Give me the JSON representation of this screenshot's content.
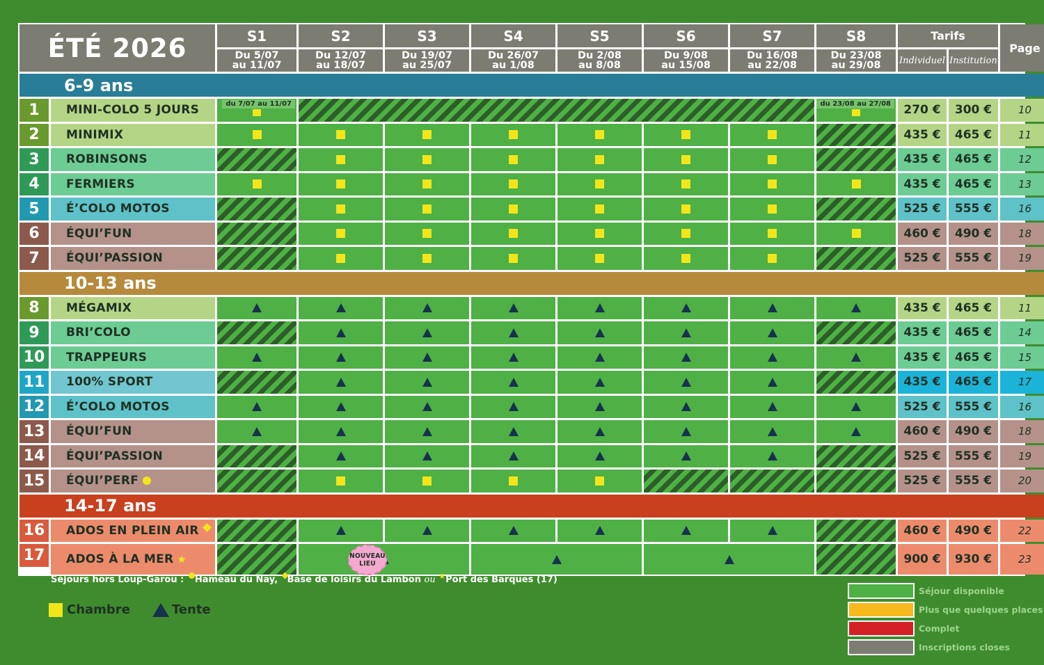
{
  "header": {
    "title": "ÉTÉ 2026",
    "weeks": [
      {
        "label": "S1",
        "dates": [
          "Du 5/07",
          "au 11/07"
        ]
      },
      {
        "label": "S2",
        "dates": [
          "Du 12/07",
          "au 18/07"
        ]
      },
      {
        "label": "S3",
        "dates": [
          "Du 19/07",
          "au 25/07"
        ]
      },
      {
        "label": "S4",
        "dates": [
          "Du 26/07",
          "au 1/08"
        ]
      },
      {
        "label": "S5",
        "dates": [
          "Du 2/08",
          "au 8/08"
        ]
      },
      {
        "label": "S6",
        "dates": [
          "Du 9/08",
          "au 15/08"
        ]
      },
      {
        "label": "S7",
        "dates": [
          "Du 16/08",
          "au 22/08"
        ]
      },
      {
        "label": "S8",
        "dates": [
          "Du 23/08",
          "au 29/08"
        ]
      }
    ],
    "tarifs_label": "Tarifs",
    "tarif_individuel": "Individuel",
    "tarif_institution": "Institution",
    "page_label": "Page"
  },
  "sections": [
    {
      "label": "6-9 ans",
      "color": "#2a7d96",
      "rows": [
        {
          "num": "1",
          "name": "MINI-COLO 5 JOURS",
          "num_color": "#6a9a2e",
          "bg": "#b5d586",
          "cells": [
            "room",
            "closed",
            "closed",
            "closed",
            "closed",
            "closed",
            "closed",
            "room"
          ],
          "notes": {
            "s1": "du 7/07 au 11/07",
            "s8": "du 23/08 au 27/08"
          },
          "merge_closed_s2_s7": true,
          "individuel": "270 €",
          "institution": "300 €",
          "page": "10"
        },
        {
          "num": "2",
          "name": "MINIMIX",
          "num_color": "#6a9a2e",
          "bg": "#b5d586",
          "cells": [
            "room",
            "room",
            "room",
            "room",
            "room",
            "room",
            "room",
            "closed"
          ],
          "individuel": "435 €",
          "institution": "465 €",
          "page": "11"
        },
        {
          "num": "3",
          "name": "ROBINSONS",
          "num_color": "#2f9a58",
          "bg": "#6ccc93",
          "cells": [
            "closed",
            "room",
            "room",
            "room",
            "room",
            "room",
            "room",
            "closed"
          ],
          "individuel": "435 €",
          "institution": "465 €",
          "page": "12"
        },
        {
          "num": "4",
          "name": "FERMIERS",
          "num_color": "#2f9a58",
          "bg": "#6ccc93",
          "cells": [
            "room",
            "room",
            "room",
            "room",
            "room",
            "room",
            "room",
            "room"
          ],
          "individuel": "435 €",
          "institution": "465 €",
          "page": "13"
        },
        {
          "num": "5",
          "name": "É’COLO MOTOS",
          "num_color": "#2199b0",
          "bg": "#5ec2c8",
          "cells": [
            "closed",
            "room",
            "room",
            "room",
            "room",
            "room",
            "room",
            "closed"
          ],
          "individuel": "525 €",
          "institution": "555 €",
          "page": "16"
        },
        {
          "num": "6",
          "name": "ÉQUI’FUN",
          "num_color": "#8c5a4c",
          "bg": "#b49289",
          "cells": [
            "closed",
            "room",
            "room",
            "room",
            "room",
            "room",
            "room",
            "room"
          ],
          "individuel": "460 €",
          "institution": "490 €",
          "page": "18"
        },
        {
          "num": "7",
          "name": "ÉQUI’PASSION",
          "num_color": "#8c5a4c",
          "bg": "#b49289",
          "cells": [
            "closed",
            "room",
            "room",
            "room",
            "room",
            "room",
            "room",
            "closed"
          ],
          "individuel": "525 €",
          "institution": "555 €",
          "page": "19"
        }
      ]
    },
    {
      "label": "10-13 ans",
      "color": "#b68a3c",
      "rows": [
        {
          "num": "8",
          "name": "MÉGAMIX",
          "num_color": "#6a9a2e",
          "bg": "#b5d586",
          "cells": [
            "tent",
            "tent",
            "tent",
            "tent",
            "tent",
            "tent",
            "tent",
            "tent"
          ],
          "individuel": "435 €",
          "institution": "465 €",
          "page": "11"
        },
        {
          "num": "9",
          "name": "BRI’COLO",
          "num_color": "#2f9a58",
          "bg": "#6ccc93",
          "cells": [
            "closed",
            "tent",
            "tent",
            "tent",
            "tent",
            "tent",
            "tent",
            "closed"
          ],
          "individuel": "435 €",
          "institution": "465 €",
          "page": "14"
        },
        {
          "num": "10",
          "name": "TRAPPEURS",
          "num_color": "#2f9a58",
          "bg": "#6ccc93",
          "cells": [
            "tent",
            "tent",
            "tent",
            "tent",
            "tent",
            "tent",
            "tent",
            "tent"
          ],
          "individuel": "435 €",
          "institution": "465 €",
          "page": "15"
        },
        {
          "num": "11",
          "name": "100% SPORT",
          "num_color": "#1fa6c7",
          "bg": "#72c6cf",
          "price_bg": "#1cb3d9",
          "cells": [
            "closed",
            "tent",
            "tent",
            "tent",
            "tent",
            "tent",
            "tent",
            "closed"
          ],
          "individuel": "435 €",
          "institution": "465 €",
          "page": "17"
        },
        {
          "num": "12",
          "name": "É’COLO MOTOS",
          "num_color": "#2199b0",
          "bg": "#5ec2c8",
          "cells": [
            "tent",
            "tent",
            "tent",
            "tent",
            "tent",
            "tent",
            "tent",
            "tent"
          ],
          "individuel": "525 €",
          "institution": "555 €",
          "page": "16"
        },
        {
          "num": "13",
          "name": "ÉQUI’FUN",
          "num_color": "#8c5a4c",
          "bg": "#b49289",
          "cells": [
            "tent",
            "tent",
            "tent",
            "tent",
            "tent",
            "tent",
            "tent",
            "tent"
          ],
          "individuel": "460 €",
          "institution": "490 €",
          "page": "18"
        },
        {
          "num": "14",
          "name": "ÉQUI’PASSION",
          "num_color": "#8c5a4c",
          "bg": "#b49289",
          "cells": [
            "closed",
            "tent",
            "tent",
            "tent",
            "tent",
            "tent",
            "tent",
            "closed"
          ],
          "individuel": "525 €",
          "institution": "555 €",
          "page": "19"
        },
        {
          "num": "15",
          "name": "ÉQUI’PERF",
          "num_color": "#8c5a4c",
          "bg": "#b49289",
          "marker": "dot",
          "cells": [
            "closed",
            "room",
            "room",
            "room",
            "room",
            "closed",
            "closed",
            "closed"
          ],
          "individuel": "525 €",
          "institution": "555 €",
          "page": "20"
        }
      ]
    },
    {
      "label": "14-17 ans",
      "color": "#c8401e",
      "rows": [
        {
          "num": "16",
          "name": "ADOS EN PLEIN AIR",
          "num_color": "#d95a3c",
          "bg": "#ec8b6c",
          "marker": "diamond",
          "cells": [
            "closed",
            "tent",
            "tent",
            "tent",
            "tent",
            "tent",
            "tent",
            "closed"
          ],
          "individuel": "460 €",
          "institution": "490 €",
          "page": "22"
        },
        {
          "num": "17",
          "name": "ADOS À LA MER",
          "num_color": "#d95a3c",
          "bg": "#ec8b6c",
          "marker": "star",
          "badge": "NOUVEAU LIEU",
          "cells": [
            "closed",
            "tent2",
            "tent2",
            "tent2",
            "closed"
          ],
          "individuel": "900 €",
          "institution": "930 €",
          "page": "23"
        }
      ]
    }
  ],
  "footer": {
    "sites_prefix": "Séjours hors Loup-Garou :",
    "site1": "Hameau du Nay,",
    "site2": "Base de loisirs du Lambon",
    "ou": "ou",
    "site3": "Port des Barques (17)",
    "legend_room": "Chambre",
    "legend_tent": "Tente"
  },
  "status_legend": [
    {
      "label": "Séjour disponible",
      "color": "#4eb045"
    },
    {
      "label": "Plus que quelques places",
      "color": "#f6b81c"
    },
    {
      "label": "Complet",
      "color": "#d42126"
    },
    {
      "label": "Inscriptions closes",
      "color": "#7d7c72"
    }
  ]
}
